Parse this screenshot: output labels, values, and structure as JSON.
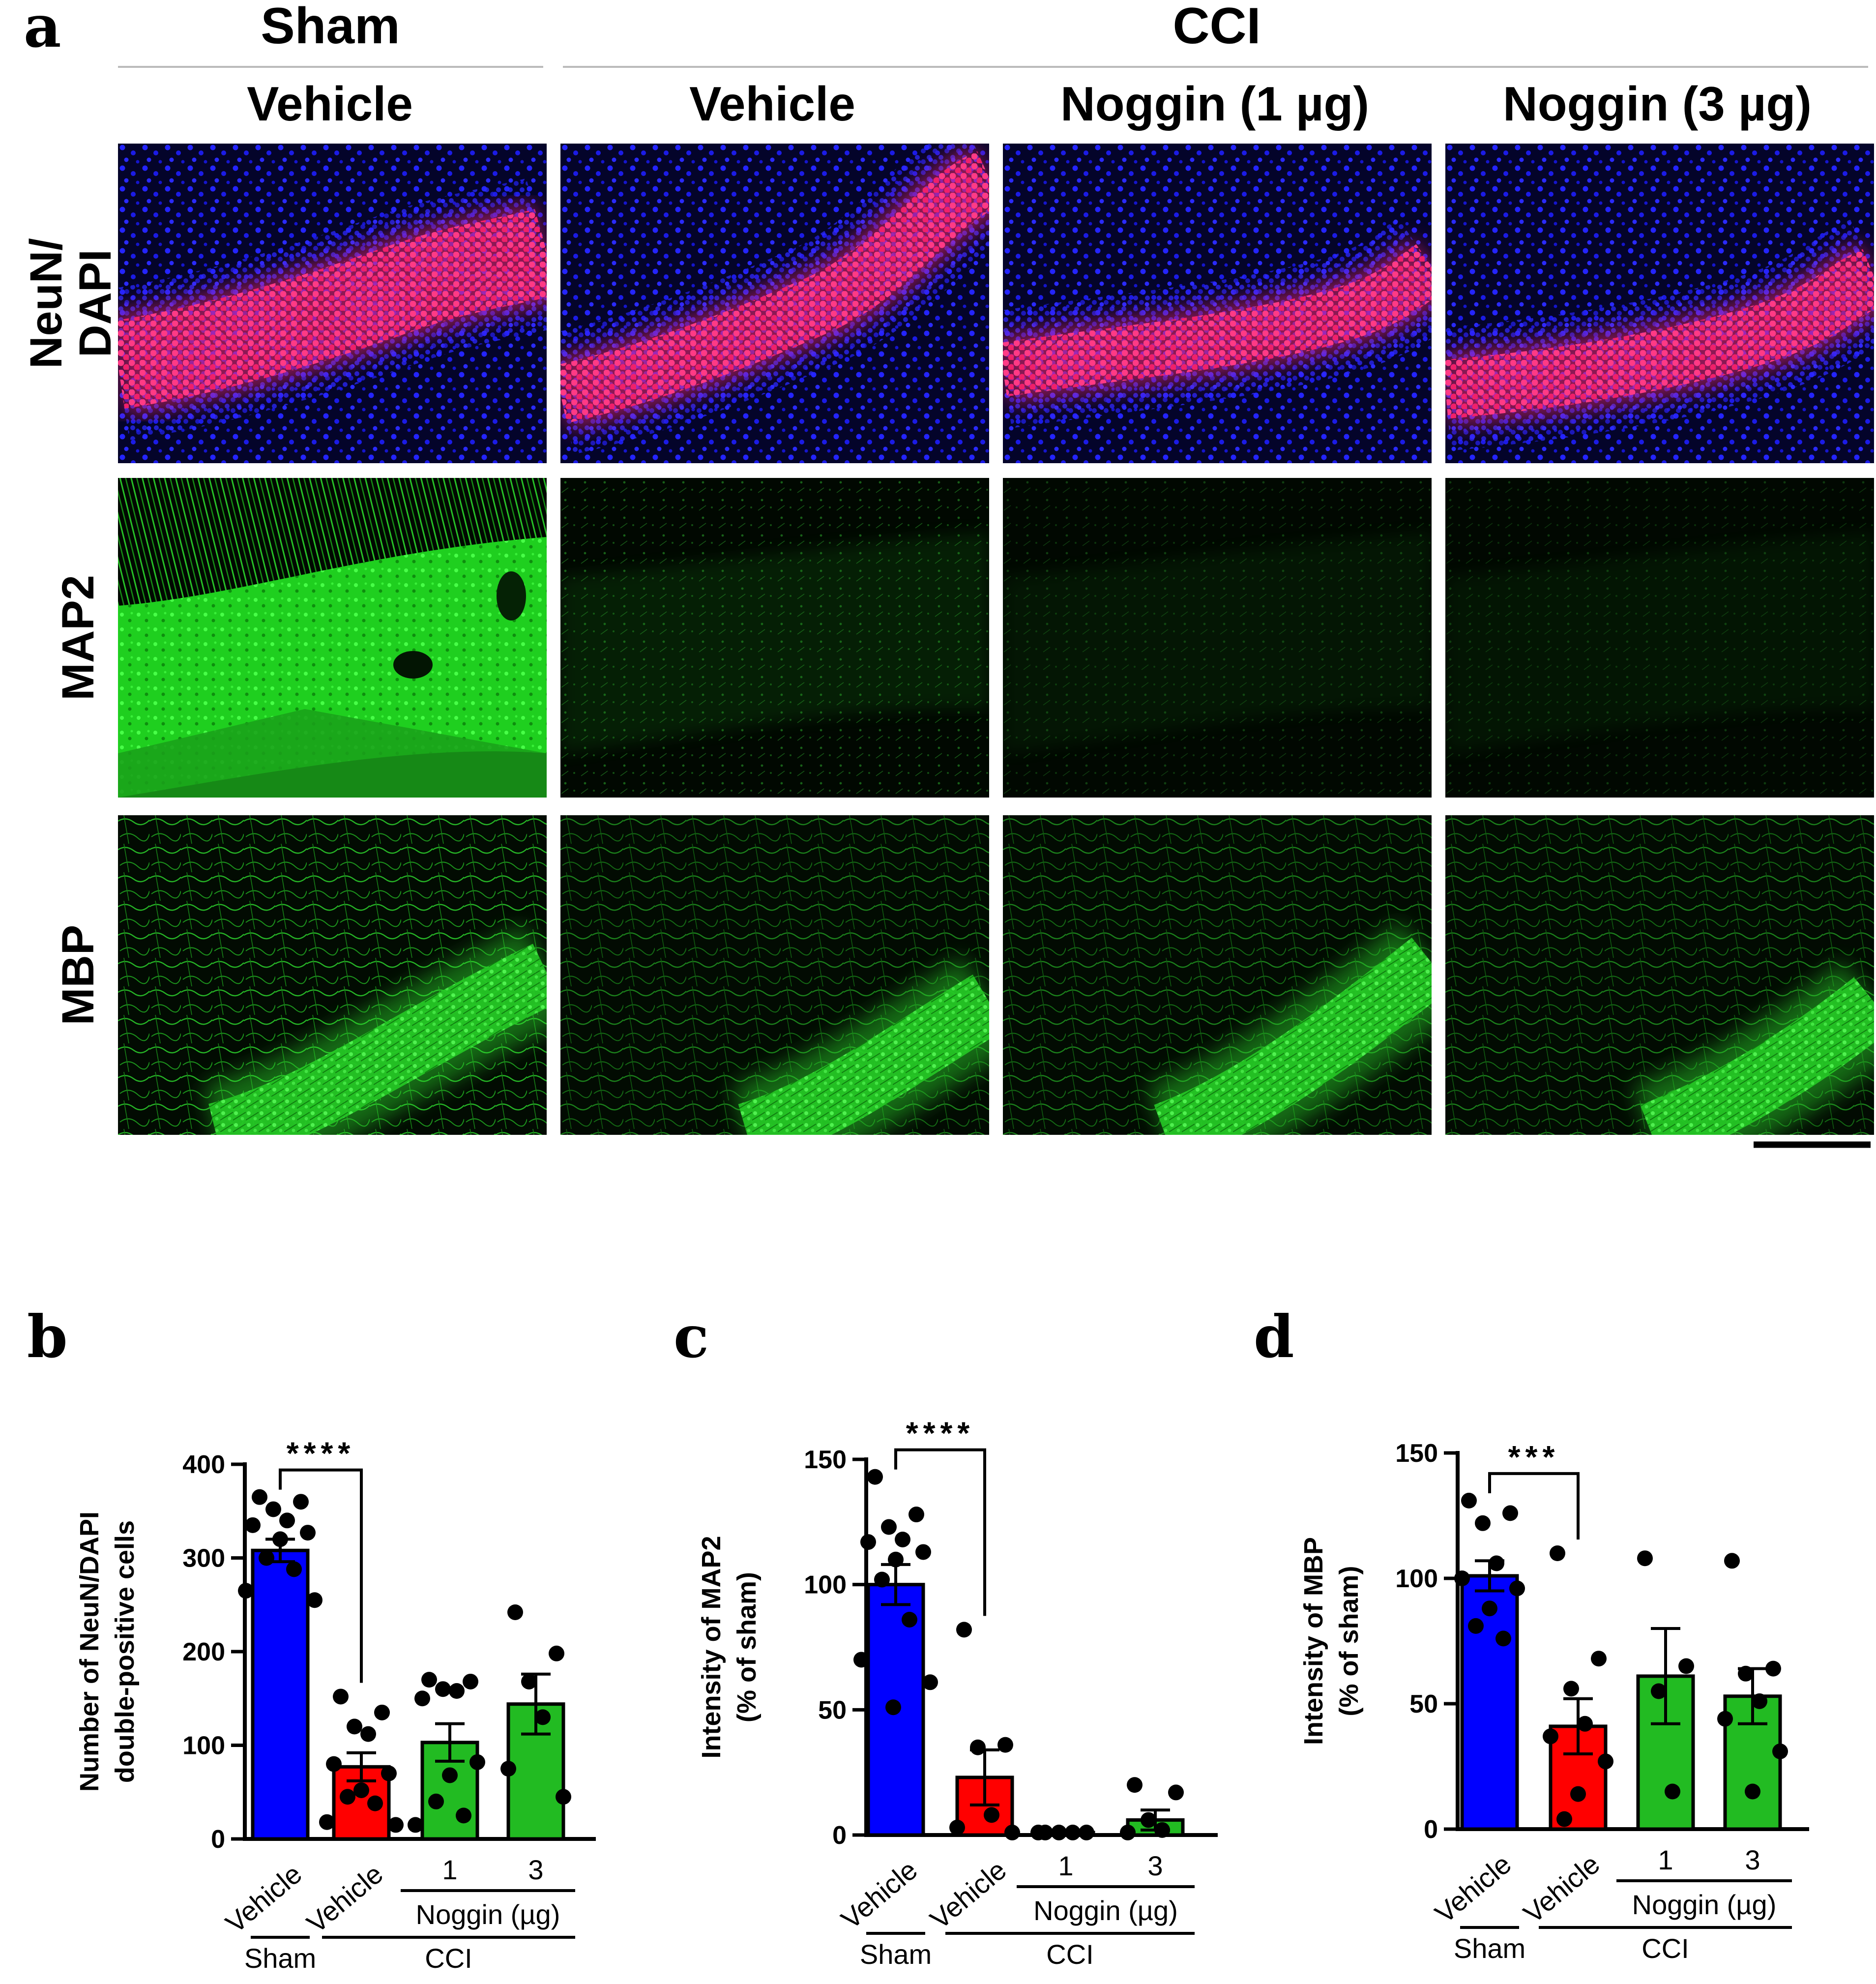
{
  "panel_a": {
    "letter": "a",
    "sham_label": "Sham",
    "cci_label": "CCI",
    "columns": [
      "Vehicle",
      "Vehicle",
      "Noggin (1 µg)",
      "Noggin (3 µg)"
    ],
    "rows": [
      "NeuN/\nDAPI",
      "MAP2",
      "MBP"
    ],
    "colors": {
      "dapi": "#1414ff",
      "neun": "#ff2a78",
      "map2": "#22dd22",
      "mbp": "#33ee33"
    }
  },
  "chart_data": [
    {
      "type": "bar",
      "letter": "b",
      "ylabel": "Number of  NeuN/DAPI\ndouble-positive cells",
      "ylim": [
        0,
        400
      ],
      "yticks": [
        "0",
        "100",
        "200",
        "300",
        "400"
      ],
      "categories": [
        "Vehicle",
        "Vehicle",
        "1",
        "3"
      ],
      "group_labels": {
        "sham": "Sham",
        "cci": "CCI",
        "noggin": "Noggin (µg)"
      },
      "colors": [
        "#0000ff",
        "#ff0000",
        "#22bb22",
        "#22bb22"
      ],
      "values": [
        308,
        77,
        103,
        144
      ],
      "sem": [
        12,
        15,
        20,
        32
      ],
      "points": [
        [
          365,
          360,
          352,
          340,
          335,
          327,
          320,
          300,
          288,
          265,
          255
        ],
        [
          152,
          135,
          120,
          112,
          80,
          70,
          52,
          45,
          38,
          18,
          15
        ],
        [
          170,
          168,
          160,
          158,
          150,
          82,
          68,
          40,
          25,
          15
        ],
        [
          242,
          198,
          168,
          130,
          75,
          45
        ]
      ],
      "significance": {
        "from": 0,
        "to": 1,
        "label": "****"
      }
    },
    {
      "type": "bar",
      "letter": "c",
      "ylabel": "Intensity of MAP2\n(% of sham)",
      "ylim": [
        0,
        150
      ],
      "yticks": [
        "0",
        "50",
        "100",
        "150"
      ],
      "categories": [
        "Vehicle",
        "Vehicle",
        "1",
        "3"
      ],
      "group_labels": {
        "sham": "Sham",
        "cci": "CCI",
        "noggin": "Noggin (µg)"
      },
      "colors": [
        "#0000ff",
        "#ff0000",
        "#22bb22",
        "#22bb22"
      ],
      "values": [
        100,
        23,
        1,
        6
      ],
      "sem": [
        8,
        11,
        0.3,
        4
      ],
      "points": [
        [
          143,
          128,
          123,
          118,
          117,
          113,
          110,
          102,
          86,
          70,
          61,
          51
        ],
        [
          82,
          36,
          35,
          8,
          3,
          1
        ],
        [
          1,
          1,
          1,
          1,
          1
        ],
        [
          20,
          17,
          6,
          2,
          1
        ]
      ],
      "significance": {
        "from": 0,
        "to": 1,
        "label": "****"
      }
    },
    {
      "type": "bar",
      "letter": "d",
      "ylabel": "Intensity of MBP\n(% of sham)",
      "ylim": [
        0,
        150
      ],
      "yticks": [
        "0",
        "50",
        "100",
        "150"
      ],
      "categories": [
        "Vehicle",
        "Vehicle",
        "1",
        "3"
      ],
      "group_labels": {
        "sham": "Sham",
        "cci": "CCI",
        "noggin": "Noggin (µg)"
      },
      "colors": [
        "#0000ff",
        "#ff0000",
        "#22bb22",
        "#22bb22"
      ],
      "values": [
        101,
        41,
        61,
        53
      ],
      "sem": [
        6,
        11,
        19,
        11
      ],
      "points": [
        [
          131,
          126,
          122,
          106,
          100,
          96,
          88,
          81,
          76
        ],
        [
          110,
          68,
          56,
          42,
          37,
          27,
          14,
          4
        ],
        [
          108,
          65,
          55,
          15
        ],
        [
          107,
          64,
          62,
          51,
          44,
          31,
          15
        ]
      ],
      "significance": {
        "from": 0,
        "to": 1,
        "label": "***"
      }
    }
  ]
}
